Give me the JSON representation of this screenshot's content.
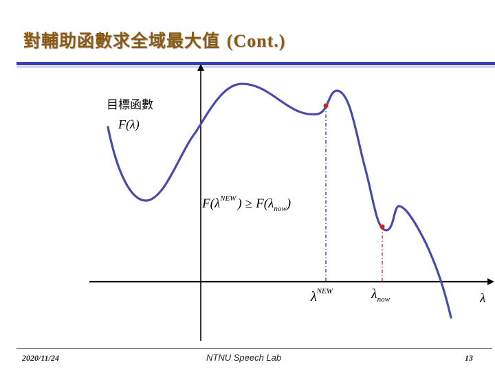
{
  "slide": {
    "title_cjk": "對輔助函數求全域最大值",
    "title_latin": "(Cont.)",
    "footer": {
      "date": "2020/11/24",
      "lab": "NTNU Speech Lab",
      "page": "13"
    }
  },
  "diagram": {
    "objective_label": "目標函數",
    "function_label": "F(λ)",
    "inequality": {
      "left_f": "F(",
      "left_lambda": "λ",
      "left_sup": "NEW",
      "left_close": ")",
      "relation": "≥",
      "right_f": "F(",
      "right_lambda": "λ",
      "right_sub": "now",
      "right_close": ")"
    },
    "x_marks": {
      "new_lambda": "λ",
      "new_sup": "NEW",
      "now_lambda": "λ",
      "now_sub": "now"
    },
    "x_axis_label": "λ",
    "colors": {
      "curve": "#4a4aa8",
      "axis": "#000000",
      "new_guide": "#1a3a8a",
      "now_guide": "#cc2222",
      "points": "#cc2222",
      "title": "#8a5a12",
      "header_rule": "#3b3fb5"
    }
  }
}
